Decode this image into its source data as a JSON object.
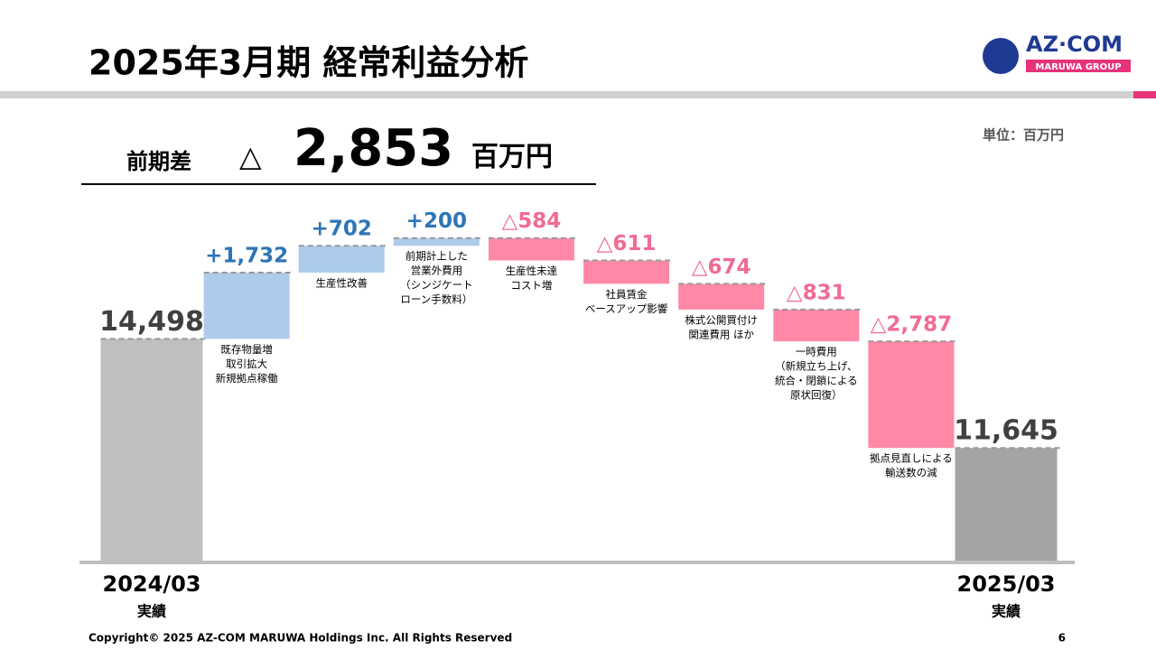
{
  "header": {
    "title": "2025年3月期 経常利益分析",
    "logo": "AZ·COM",
    "logo_sub": "MARUWA GROUP"
  },
  "summary": {
    "label": "前期差",
    "sign": "△",
    "value": "2,853",
    "unit": "百万円"
  },
  "unit_note": "単位：百万円",
  "chart_data": {
    "type": "waterfall",
    "categories": [
      [
        "2024/03",
        "実績"
      ],
      [
        "既存物量増",
        "取引拡大",
        "新規拠点稼働"
      ],
      [
        "生産性改善"
      ],
      [
        "前期計上した",
        "営業外費用",
        "（シンジケート",
        "ローン手数料）"
      ],
      [
        "生産性未達",
        "コスト増"
      ],
      [
        "社員賃金",
        "ベースアップ影響"
      ],
      [
        "株式公開買付け",
        "関連費用 ほか"
      ],
      [
        "一時費用",
        "（新規立ち上げ、",
        "統合・閉鎖による",
        "原状回復）"
      ],
      [
        "拠点見直しによる",
        "輸送数の減"
      ],
      [
        "2025/03",
        "実績"
      ]
    ],
    "measures": [
      "absolute",
      "relative",
      "relative",
      "relative",
      "relative",
      "relative",
      "relative",
      "relative",
      "relative",
      "total"
    ],
    "values": [
      14498,
      1732,
      702,
      200,
      -584,
      -611,
      -674,
      -831,
      -2787,
      11645
    ],
    "value_labels": [
      "14,498",
      "+1,732",
      "+702",
      "+200",
      "△584",
      "△611",
      "△674",
      "△831",
      "△2,787",
      "11,645"
    ],
    "colors": {
      "absolute": "#bfbfbf",
      "total": "#a5a4a2",
      "increase": "#adcbea",
      "decrease": "#ff88a7"
    },
    "label_colors": {
      "absolute": "#404040",
      "total": "#404040",
      "increase": "#2e75b6",
      "decrease": "#f06b92"
    },
    "ylim": [
      8700,
      18400
    ]
  },
  "footer": {
    "copyright": "Copyright© 2025 AZ-COM MARUWA Holdings Inc. All Rights Reserved",
    "page": "6"
  }
}
